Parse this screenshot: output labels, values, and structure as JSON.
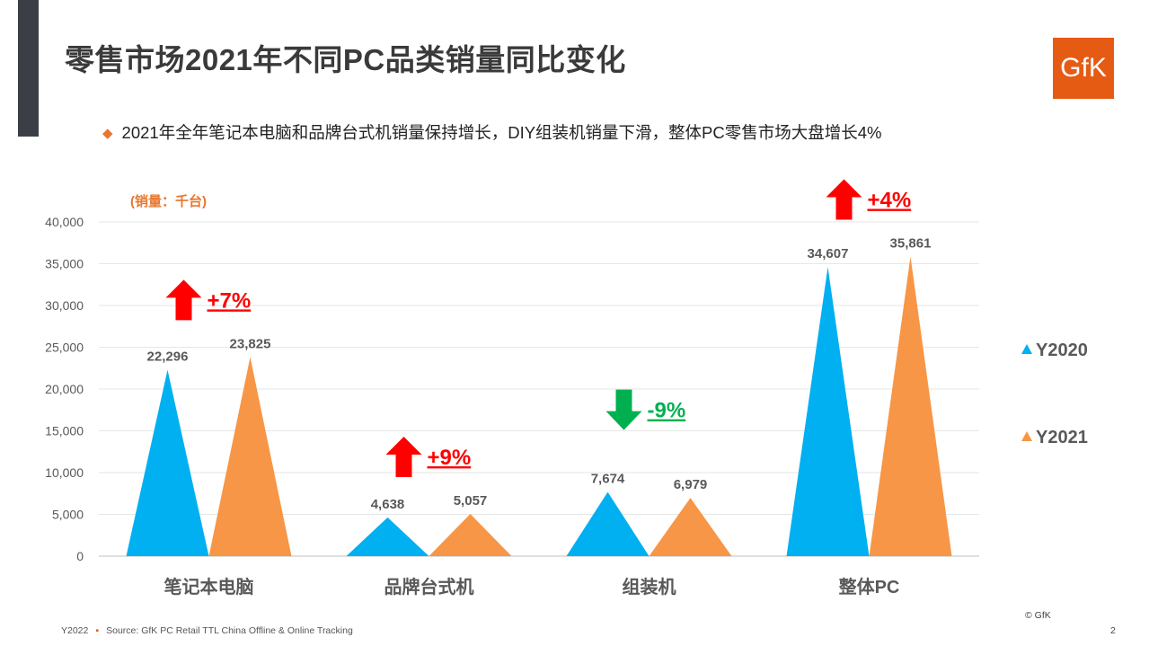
{
  "page": {
    "title": "零售市场2021年不同PC品类销量同比变化",
    "bullet": "2021年全年笔记本电脑和品牌台式机销量保持增长，DIY组装机销量下滑，整体PC零售市场大盘增长4%",
    "logo": "GfK",
    "footer_year": "Y2022",
    "footer_source": "Source: GfK PC Retail TTL China Offline  & Online Tracking",
    "copyright": "© GfK",
    "page_number": "2"
  },
  "colors": {
    "Y2020": "#00b0f0",
    "Y2021": "#f79646",
    "increase": "#ff0000",
    "decrease": "#00b050",
    "unit_label": "#e8772e"
  },
  "chart_data": {
    "type": "bar",
    "mark_shape": "triangle",
    "unit_label": "(销量：千台)",
    "categories": [
      "笔记本电脑",
      "品牌台式机",
      "组装机",
      "整体PC"
    ],
    "series": [
      {
        "name": "Y2020",
        "values": [
          22296,
          4638,
          7674,
          34607
        ],
        "labels": [
          "22,296",
          "4,638",
          "7,674",
          "34,607"
        ]
      },
      {
        "name": "Y2021",
        "values": [
          23825,
          5057,
          6979,
          35861
        ],
        "labels": [
          "23,825",
          "5,057",
          "6,979",
          "35,861"
        ]
      }
    ],
    "ylim": [
      0,
      40000
    ],
    "yticks": [
      0,
      5000,
      10000,
      15000,
      20000,
      25000,
      30000,
      35000,
      40000
    ],
    "ytick_labels": [
      "0",
      "5,000",
      "10,000",
      "15,000",
      "20,000",
      "25,000",
      "30,000",
      "35,000",
      "40,000"
    ],
    "grid": true,
    "legend_position": "right",
    "annotations": [
      {
        "category": "笔记本电脑",
        "text": "+7%",
        "direction": "up"
      },
      {
        "category": "品牌台式机",
        "text": "+9%",
        "direction": "up"
      },
      {
        "category": "组装机",
        "text": "-9%",
        "direction": "down"
      },
      {
        "category": "整体PC",
        "text": "+4%",
        "direction": "up"
      }
    ]
  }
}
